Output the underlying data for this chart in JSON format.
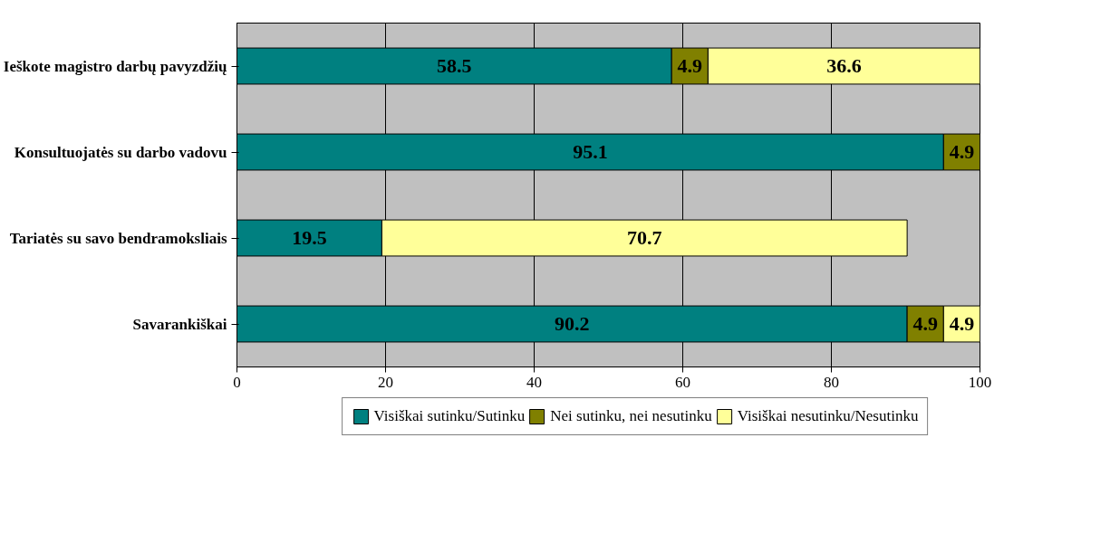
{
  "chart_data": {
    "type": "bar",
    "orientation": "horizontal",
    "stacked": true,
    "categories": [
      "Ieškote magistro darbų pavyzdžių",
      "Konsultuojatės su darbo vadovu",
      "Tariatės su savo bendramoksliais",
      "Savarankiškai"
    ],
    "series": [
      {
        "name": "Visiškai sutinku/Sutinku",
        "color": "#008080",
        "values": [
          58.5,
          95.1,
          19.5,
          90.2
        ]
      },
      {
        "name": "Nei sutinku, nei nesutinku",
        "color": "#808000",
        "values": [
          4.9,
          4.9,
          null,
          4.9
        ]
      },
      {
        "name": "Visiškai nesutinku/Nesutinku",
        "color": "#ffff99",
        "values": [
          36.6,
          null,
          70.7,
          4.9
        ]
      }
    ],
    "xlim": [
      0,
      100
    ],
    "xticks": [
      0,
      20,
      40,
      60,
      80,
      100
    ],
    "grid": "x",
    "legend": "bottom",
    "data_labels": true
  }
}
